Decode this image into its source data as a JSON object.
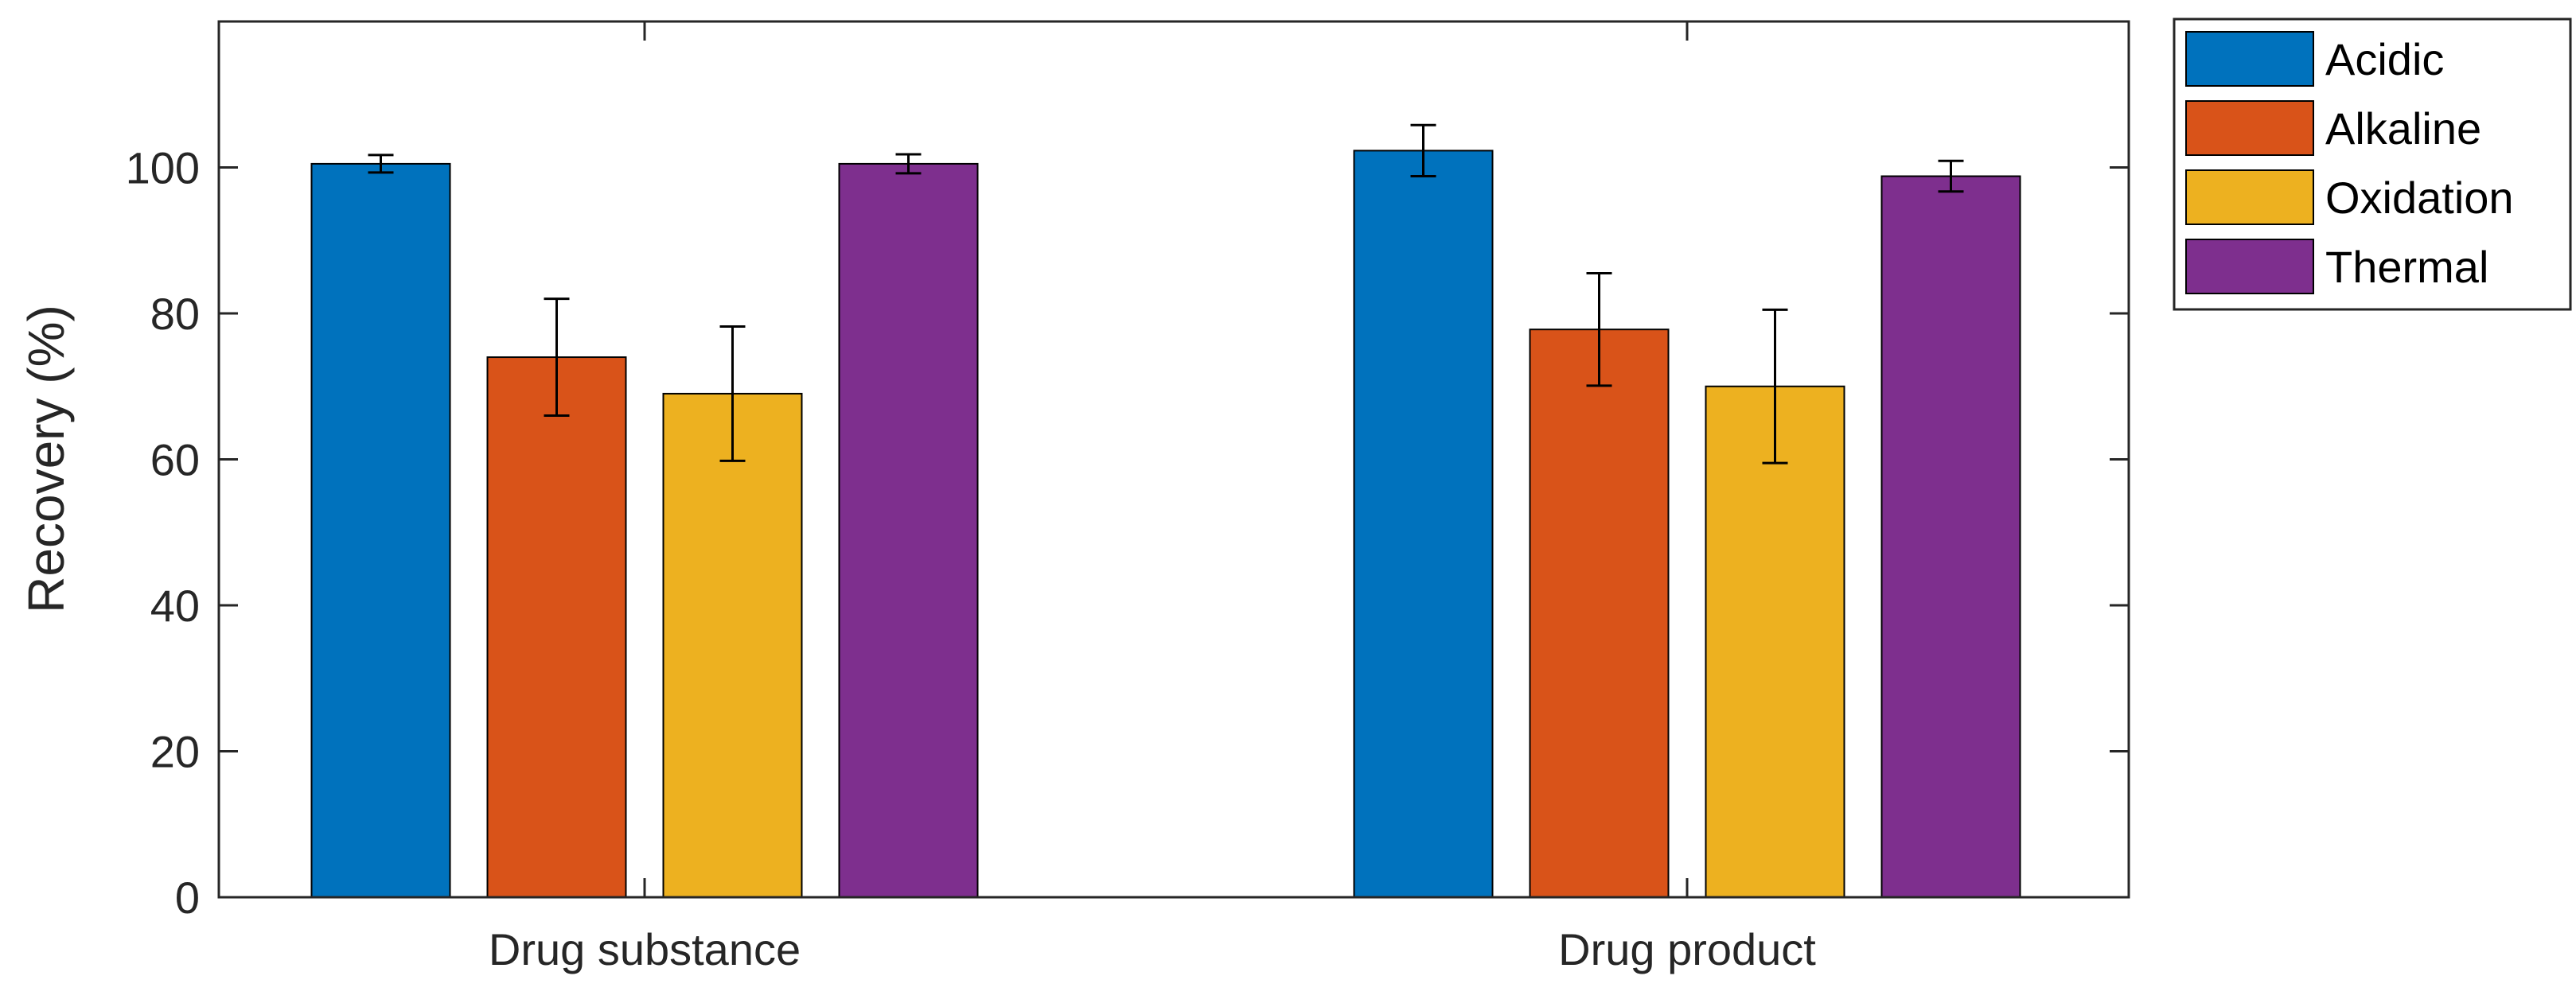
{
  "chart_data": {
    "type": "bar",
    "title": "",
    "xlabel": "",
    "ylabel": "Recovery (%)",
    "ylim": [
      0,
      120
    ],
    "yticks": [
      0,
      20,
      40,
      60,
      80,
      100
    ],
    "categories": [
      "Drug substance",
      "Drug product"
    ],
    "series": [
      {
        "name": "Acidic",
        "color": "#0072BD",
        "values": [
          100.5,
          102.3
        ],
        "errors": [
          1.2,
          3.5
        ]
      },
      {
        "name": "Alkaline",
        "color": "#D95319",
        "values": [
          74.0,
          77.8
        ],
        "errors": [
          8.0,
          7.7
        ]
      },
      {
        "name": "Oxidation",
        "color": "#EDB120",
        "values": [
          69.0,
          70.0
        ],
        "errors": [
          9.2,
          10.5
        ]
      },
      {
        "name": "Thermal",
        "color": "#7E2F8E",
        "values": [
          100.5,
          98.8
        ],
        "errors": [
          1.3,
          2.1
        ]
      }
    ],
    "grid": false,
    "legend_position": "top-right, outside"
  }
}
